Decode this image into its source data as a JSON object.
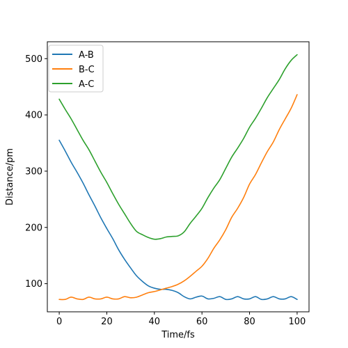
{
  "chart_data": {
    "type": "line",
    "xlabel": "Time/fs",
    "ylabel": "Distance/pm",
    "xlim": [
      -5,
      105
    ],
    "ylim": [
      50,
      530
    ],
    "xticks": [
      0,
      20,
      40,
      60,
      80,
      100
    ],
    "yticks": [
      100,
      200,
      300,
      400,
      500
    ],
    "grid": false,
    "legend_position": "top-left",
    "series": [
      {
        "name": "A-B",
        "color": "#1f77b4",
        "x": [
          0,
          2.5,
          5,
          7.5,
          10,
          12.5,
          15,
          17.5,
          20,
          22.5,
          25,
          27.5,
          30,
          32.5,
          35,
          37.5,
          40,
          42.5,
          45,
          47.5,
          50,
          52.5,
          55,
          57.5,
          60,
          62.5,
          65,
          67.5,
          70,
          72.5,
          75,
          77.5,
          80,
          82.5,
          85,
          87.5,
          90,
          92.5,
          95,
          97.5,
          100
        ],
        "y": [
          355,
          336,
          316,
          298,
          279,
          258,
          238,
          217,
          198,
          180,
          160,
          143,
          128,
          114,
          104,
          96,
          92,
          90,
          90,
          88,
          84,
          77,
          73,
          76,
          78,
          73,
          74,
          77,
          72,
          73,
          77,
          73,
          73,
          77,
          72,
          73,
          77,
          73,
          73,
          77,
          72
        ]
      },
      {
        "name": "B-C",
        "color": "#ff7f0e",
        "x": [
          0,
          2.5,
          5,
          7.5,
          10,
          12.5,
          15,
          17.5,
          20,
          22.5,
          25,
          27.5,
          30,
          32.5,
          35,
          37.5,
          40,
          42.5,
          45,
          47.5,
          50,
          52.5,
          55,
          57.5,
          60,
          62.5,
          65,
          67.5,
          70,
          72.5,
          75,
          77.5,
          80,
          82.5,
          85,
          87.5,
          90,
          92.5,
          95,
          97.5,
          100
        ],
        "y": [
          72,
          72,
          76,
          73,
          72,
          76,
          73,
          73,
          76,
          73,
          73,
          77,
          75,
          76,
          80,
          84,
          86,
          89,
          92,
          95,
          99,
          105,
          113,
          122,
          131,
          145,
          163,
          178,
          196,
          218,
          234,
          253,
          277,
          294,
          315,
          335,
          352,
          374,
          393,
          412,
          436
        ]
      },
      {
        "name": "A-C",
        "color": "#2ca02c",
        "x": [
          0,
          2.5,
          5,
          7.5,
          10,
          12.5,
          15,
          17.5,
          20,
          22.5,
          25,
          27.5,
          30,
          32.5,
          35,
          37.5,
          40,
          42.5,
          45,
          47.5,
          50,
          52.5,
          55,
          57.5,
          60,
          62.5,
          65,
          67.5,
          70,
          72.5,
          75,
          77.5,
          80,
          82.5,
          85,
          87.5,
          90,
          92.5,
          95,
          97.5,
          100
        ],
        "y": [
          428,
          410,
          393,
          374,
          355,
          338,
          318,
          298,
          280,
          260,
          241,
          224,
          207,
          193,
          187,
          182,
          179,
          180,
          183,
          184,
          185,
          192,
          207,
          220,
          234,
          253,
          270,
          285,
          305,
          325,
          341,
          358,
          378,
          394,
          412,
          431,
          447,
          463,
          482,
          497,
          507
        ]
      }
    ]
  }
}
